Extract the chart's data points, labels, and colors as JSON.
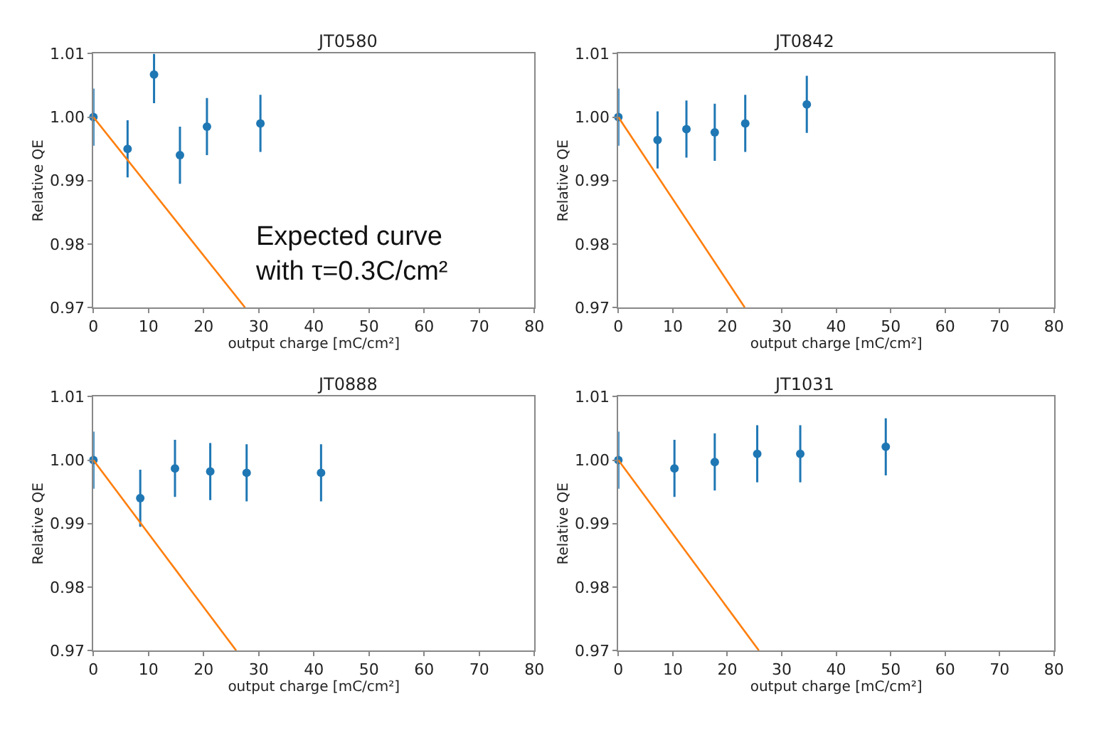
{
  "chart_data": [
    {
      "type": "scatter",
      "title": "JT0580",
      "xlabel": "output charge [mC/cm²]",
      "ylabel": "Relative QE",
      "xlim": [
        0,
        80
      ],
      "xticks": [
        0,
        10,
        20,
        30,
        40,
        50,
        60,
        70,
        80
      ],
      "ylim": [
        0.97,
        1.01
      ],
      "yticks": [
        {
          "value": 0.97,
          "label": "0.97"
        },
        {
          "value": 0.98,
          "label": "0.98"
        },
        {
          "value": 0.99,
          "label": "0.99"
        },
        {
          "value": 1.0,
          "label": "1.00"
        },
        {
          "value": 1.01,
          "label": "1.01"
        }
      ],
      "grid": false,
      "marker": "circle",
      "annotations": [
        "Expected curve\nwith τ=0.3C/cm²"
      ],
      "series": [
        {
          "color": "#1f77b4",
          "x": [
            0,
            6.2,
            11,
            15.7,
            20.6,
            30.3
          ],
          "values": [
            1.0,
            0.995,
            1.0067,
            0.994,
            0.9985,
            0.999
          ],
          "errors": [
            0.0045,
            0.0045,
            [
              1.0022,
              1.01
            ],
            0.0045,
            0.0045,
            0.0045
          ]
        },
        {
          "type": "line",
          "marker": "none",
          "color": "#ff7f0e",
          "x": [
            0,
            27.5
          ],
          "values": [
            1.0,
            0.97
          ]
        }
      ]
    },
    {
      "type": "scatter",
      "title": "JT0842",
      "xlabel": "output charge [mC/cm²]",
      "ylabel": "Relative QE",
      "xlim": [
        0,
        80
      ],
      "xticks": [
        0,
        10,
        20,
        30,
        40,
        50,
        60,
        70,
        80
      ],
      "ylim": [
        0.97,
        1.01
      ],
      "yticks": [
        {
          "value": 0.97,
          "label": "0.97"
        },
        {
          "value": 0.98,
          "label": "0.98"
        },
        {
          "value": 0.99,
          "label": "0.99"
        },
        {
          "value": 1.0,
          "label": "1.00"
        },
        {
          "value": 1.01,
          "label": "1.01"
        }
      ],
      "grid": false,
      "marker": "circle",
      "series": [
        {
          "color": "#1f77b4",
          "x": [
            0,
            7.2,
            12.5,
            17.7,
            23.3,
            34.6
          ],
          "values": [
            1.0,
            0.9964,
            0.9981,
            0.9976,
            0.999,
            1.002
          ],
          "errors": [
            0.0045,
            0.0045,
            0.0045,
            0.0045,
            0.0045,
            0.0045
          ]
        },
        {
          "type": "line",
          "marker": "none",
          "color": "#ff7f0e",
          "x": [
            0,
            23.2
          ],
          "values": [
            1.0,
            0.97
          ]
        }
      ]
    },
    {
      "type": "scatter",
      "title": "JT0888",
      "xlabel": "output charge [mC/cm²]",
      "ylabel": "Relative QE",
      "xlim": [
        0,
        80
      ],
      "xticks": [
        0,
        10,
        20,
        30,
        40,
        50,
        60,
        70,
        80
      ],
      "ylim": [
        0.97,
        1.01
      ],
      "yticks": [
        {
          "value": 0.97,
          "label": "0.97"
        },
        {
          "value": 0.98,
          "label": "0.98"
        },
        {
          "value": 0.99,
          "label": "0.99"
        },
        {
          "value": 1.0,
          "label": "1.00"
        },
        {
          "value": 1.01,
          "label": "1.01"
        }
      ],
      "grid": false,
      "marker": "circle",
      "series": [
        {
          "color": "#1f77b4",
          "x": [
            0,
            8.5,
            14.8,
            21.2,
            27.8,
            41.3
          ],
          "values": [
            1.0,
            0.994,
            0.9987,
            0.9982,
            0.998,
            0.998
          ],
          "errors": [
            0.0045,
            0.0045,
            0.0045,
            0.0045,
            0.0045,
            0.0045
          ]
        },
        {
          "type": "line",
          "marker": "none",
          "color": "#ff7f0e",
          "x": [
            0,
            25.9
          ],
          "values": [
            1.0,
            0.97
          ]
        }
      ]
    },
    {
      "type": "scatter",
      "title": "JT1031",
      "xlabel": "output charge [mC/cm²]",
      "ylabel": "Relative QE",
      "xlim": [
        0,
        80
      ],
      "xticks": [
        0,
        10,
        20,
        30,
        40,
        50,
        60,
        70,
        80
      ],
      "ylim": [
        0.97,
        1.01
      ],
      "yticks": [
        {
          "value": 0.97,
          "label": "0.97"
        },
        {
          "value": 0.98,
          "label": "0.98"
        },
        {
          "value": 0.99,
          "label": "0.99"
        },
        {
          "value": 1.0,
          "label": "1.00"
        },
        {
          "value": 1.01,
          "label": "1.01"
        }
      ],
      "grid": false,
      "marker": "circle",
      "series": [
        {
          "color": "#1f77b4",
          "x": [
            0,
            10.3,
            17.7,
            25.5,
            33.4,
            49.1
          ],
          "values": [
            1.0,
            0.9987,
            0.9997,
            1.001,
            1.001,
            1.0021
          ],
          "errors": [
            0.0045,
            0.0045,
            0.0045,
            0.0045,
            0.0045,
            0.0045
          ]
        },
        {
          "type": "line",
          "marker": "none",
          "color": "#ff7f0e",
          "x": [
            0,
            25.8
          ],
          "values": [
            1.0,
            0.97
          ]
        }
      ]
    }
  ]
}
